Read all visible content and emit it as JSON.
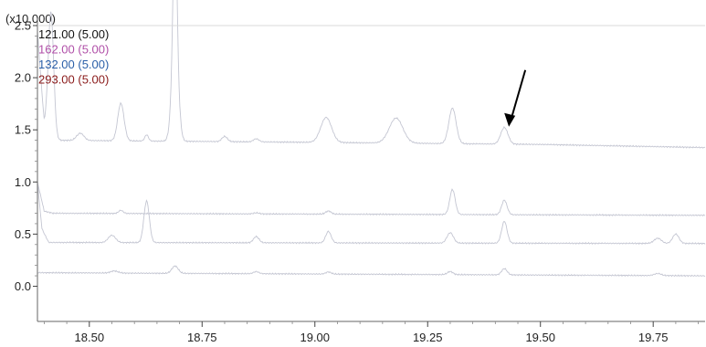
{
  "chart_data": {
    "type": "line",
    "y_multiplier_label": "(x10,000)",
    "xlim": [
      18.385,
      19.865
    ],
    "ylim": [
      -0.32,
      2.57
    ],
    "x_ticks": [
      18.5,
      18.75,
      19.0,
      19.25,
      19.5,
      19.75
    ],
    "x_tick_labels": [
      "18.50",
      "18.75",
      "19.00",
      "19.25",
      "19.50",
      "19.75"
    ],
    "y_ticks": [
      0.0,
      0.5,
      1.0,
      1.5,
      2.0,
      2.5
    ],
    "y_tick_labels": [
      "0.0",
      "0.5",
      "1.0",
      "1.5",
      "2.0",
      "2.5"
    ],
    "grid": false,
    "legend": [
      {
        "text": "121.00 (5.00)",
        "color": "#111111"
      },
      {
        "text": "162.00 (5.00)",
        "color": "#b04fa8"
      },
      {
        "text": "132.00 (5.00)",
        "color": "#2a5fa8"
      },
      {
        "text": "293.00 (5.00)",
        "color": "#8a1a1a"
      }
    ],
    "annotation": {
      "type": "arrow",
      "x": 19.43,
      "y": 1.53
    },
    "series": [
      {
        "color": "#c4c6d2",
        "baseline": [
          [
            18.385,
            2.45
          ],
          [
            18.4,
            1.55
          ],
          [
            18.42,
            1.4
          ],
          [
            19.0,
            1.38
          ],
          [
            19.5,
            1.36
          ],
          [
            19.865,
            1.33
          ]
        ],
        "peaks": [
          [
            18.415,
            1.2,
            0.006
          ],
          [
            18.48,
            0.07,
            0.008
          ],
          [
            18.57,
            0.36,
            0.007
          ],
          [
            18.627,
            0.06,
            0.004
          ],
          [
            18.69,
            1.18,
            0.004
          ],
          [
            18.69,
            1.0,
            0.007
          ],
          [
            18.8,
            0.05,
            0.006
          ],
          [
            18.87,
            0.03,
            0.006
          ],
          [
            19.025,
            0.24,
            0.012
          ],
          [
            19.18,
            0.24,
            0.015
          ],
          [
            19.305,
            0.34,
            0.008
          ],
          [
            19.42,
            0.16,
            0.008
          ]
        ]
      },
      {
        "color": "#c4c6d2",
        "baseline": [
          [
            18.385,
            1.0
          ],
          [
            18.4,
            0.72
          ],
          [
            18.42,
            0.7
          ],
          [
            19.865,
            0.68
          ]
        ],
        "peaks": [
          [
            18.57,
            0.03,
            0.005
          ],
          [
            18.87,
            0.01,
            0.006
          ],
          [
            19.03,
            0.03,
            0.006
          ],
          [
            19.305,
            0.24,
            0.006
          ],
          [
            19.42,
            0.14,
            0.006
          ]
        ]
      },
      {
        "color": "#c4c6d2",
        "baseline": [
          [
            18.385,
            1.0
          ],
          [
            18.395,
            0.55
          ],
          [
            18.41,
            0.42
          ],
          [
            19.865,
            0.41
          ]
        ],
        "peaks": [
          [
            18.55,
            0.07,
            0.008
          ],
          [
            18.627,
            0.4,
            0.006
          ],
          [
            18.87,
            0.06,
            0.006
          ],
          [
            19.03,
            0.11,
            0.006
          ],
          [
            19.3,
            0.1,
            0.007
          ],
          [
            19.42,
            0.21,
            0.006
          ],
          [
            19.76,
            0.05,
            0.008
          ],
          [
            19.8,
            0.09,
            0.007
          ]
        ]
      },
      {
        "color": "#c4c6d2",
        "baseline": [
          [
            18.385,
            0.13
          ],
          [
            19.865,
            0.1
          ]
        ],
        "peaks": [
          [
            18.555,
            0.02,
            0.008
          ],
          [
            18.69,
            0.07,
            0.007
          ],
          [
            18.87,
            0.02,
            0.006
          ],
          [
            19.03,
            0.02,
            0.006
          ],
          [
            19.3,
            0.03,
            0.006
          ],
          [
            19.42,
            0.06,
            0.006
          ],
          [
            19.76,
            0.02,
            0.008
          ]
        ]
      }
    ]
  }
}
